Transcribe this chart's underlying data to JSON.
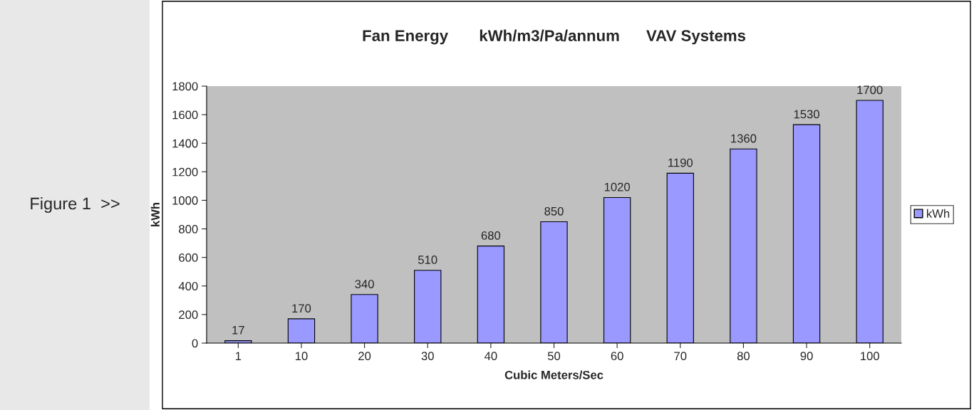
{
  "chart_data": {
    "type": "bar",
    "title": "Fan Energy       kWh/m3/Pa/annum      VAV Systems",
    "xlabel": "Cubic Meters/Sec",
    "ylabel": "kWh",
    "annotations": [
      "Figure 1  >>"
    ],
    "categories": [
      "1",
      "10",
      "20",
      "30",
      "40",
      "50",
      "60",
      "70",
      "80",
      "90",
      "100"
    ],
    "series": [
      {
        "name": "kWh",
        "color": "#9999ff",
        "values": [
          17,
          170,
          340,
          510,
          680,
          850,
          1020,
          1190,
          1360,
          1530,
          1700
        ]
      }
    ],
    "ylim": [
      0,
      1800
    ],
    "yticks": [
      0,
      200,
      400,
      600,
      800,
      1000,
      1200,
      1400,
      1600,
      1800
    ],
    "grid": false,
    "legend": "right",
    "data_labels": true
  }
}
